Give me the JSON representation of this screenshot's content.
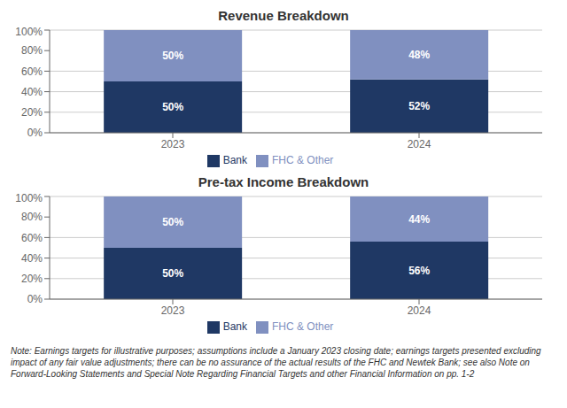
{
  "chart_data": [
    {
      "type": "bar",
      "title": "Revenue Breakdown",
      "categories": [
        "2023",
        "2024"
      ],
      "stacked": true,
      "data_labels": true,
      "grid": true,
      "legend": "bottom",
      "ylim": [
        0,
        100
      ],
      "yticks": [
        {
          "value": 0,
          "label": "0%"
        },
        {
          "value": 20,
          "label": "20%"
        },
        {
          "value": 40,
          "label": "40%"
        },
        {
          "value": 60,
          "label": "60%"
        },
        {
          "value": 80,
          "label": "80%"
        },
        {
          "value": 100,
          "label": "100%"
        }
      ],
      "series": [
        {
          "name": "Bank",
          "color": "#1f3864",
          "values": [
            50,
            52
          ],
          "value_labels": [
            "50%",
            "52%"
          ]
        },
        {
          "name": "FHC & Other",
          "color": "#8090c0",
          "values": [
            50,
            48
          ],
          "value_labels": [
            "50%",
            "48%"
          ]
        }
      ]
    },
    {
      "type": "bar",
      "title": "Pre-tax Income Breakdown",
      "categories": [
        "2023",
        "2024"
      ],
      "stacked": true,
      "data_labels": true,
      "grid": true,
      "legend": "bottom",
      "ylim": [
        0,
        100
      ],
      "yticks": [
        {
          "value": 0,
          "label": "0%"
        },
        {
          "value": 20,
          "label": "20%"
        },
        {
          "value": 40,
          "label": "40%"
        },
        {
          "value": 60,
          "label": "60%"
        },
        {
          "value": 80,
          "label": "80%"
        },
        {
          "value": 100,
          "label": "100%"
        }
      ],
      "series": [
        {
          "name": "Bank",
          "color": "#1f3864",
          "values": [
            50,
            56
          ],
          "value_labels": [
            "50%",
            "56%"
          ]
        },
        {
          "name": "FHC & Other",
          "color": "#8090c0",
          "values": [
            50,
            44
          ],
          "value_labels": [
            "50%",
            "44%"
          ]
        }
      ],
      "annotations": [
        "Note: Earnings targets for illustrative purposes; assumptions include a January 2023 closing date; earnings targets presented excluding impact of any fair value adjustments; there can be no assurance of the actual results of the FHC and Newtek Bank; see also Note on  Forward-Looking Statements and Special Note Regarding Financial Targets and other Financial Information on pp. 1-2"
      ]
    }
  ]
}
